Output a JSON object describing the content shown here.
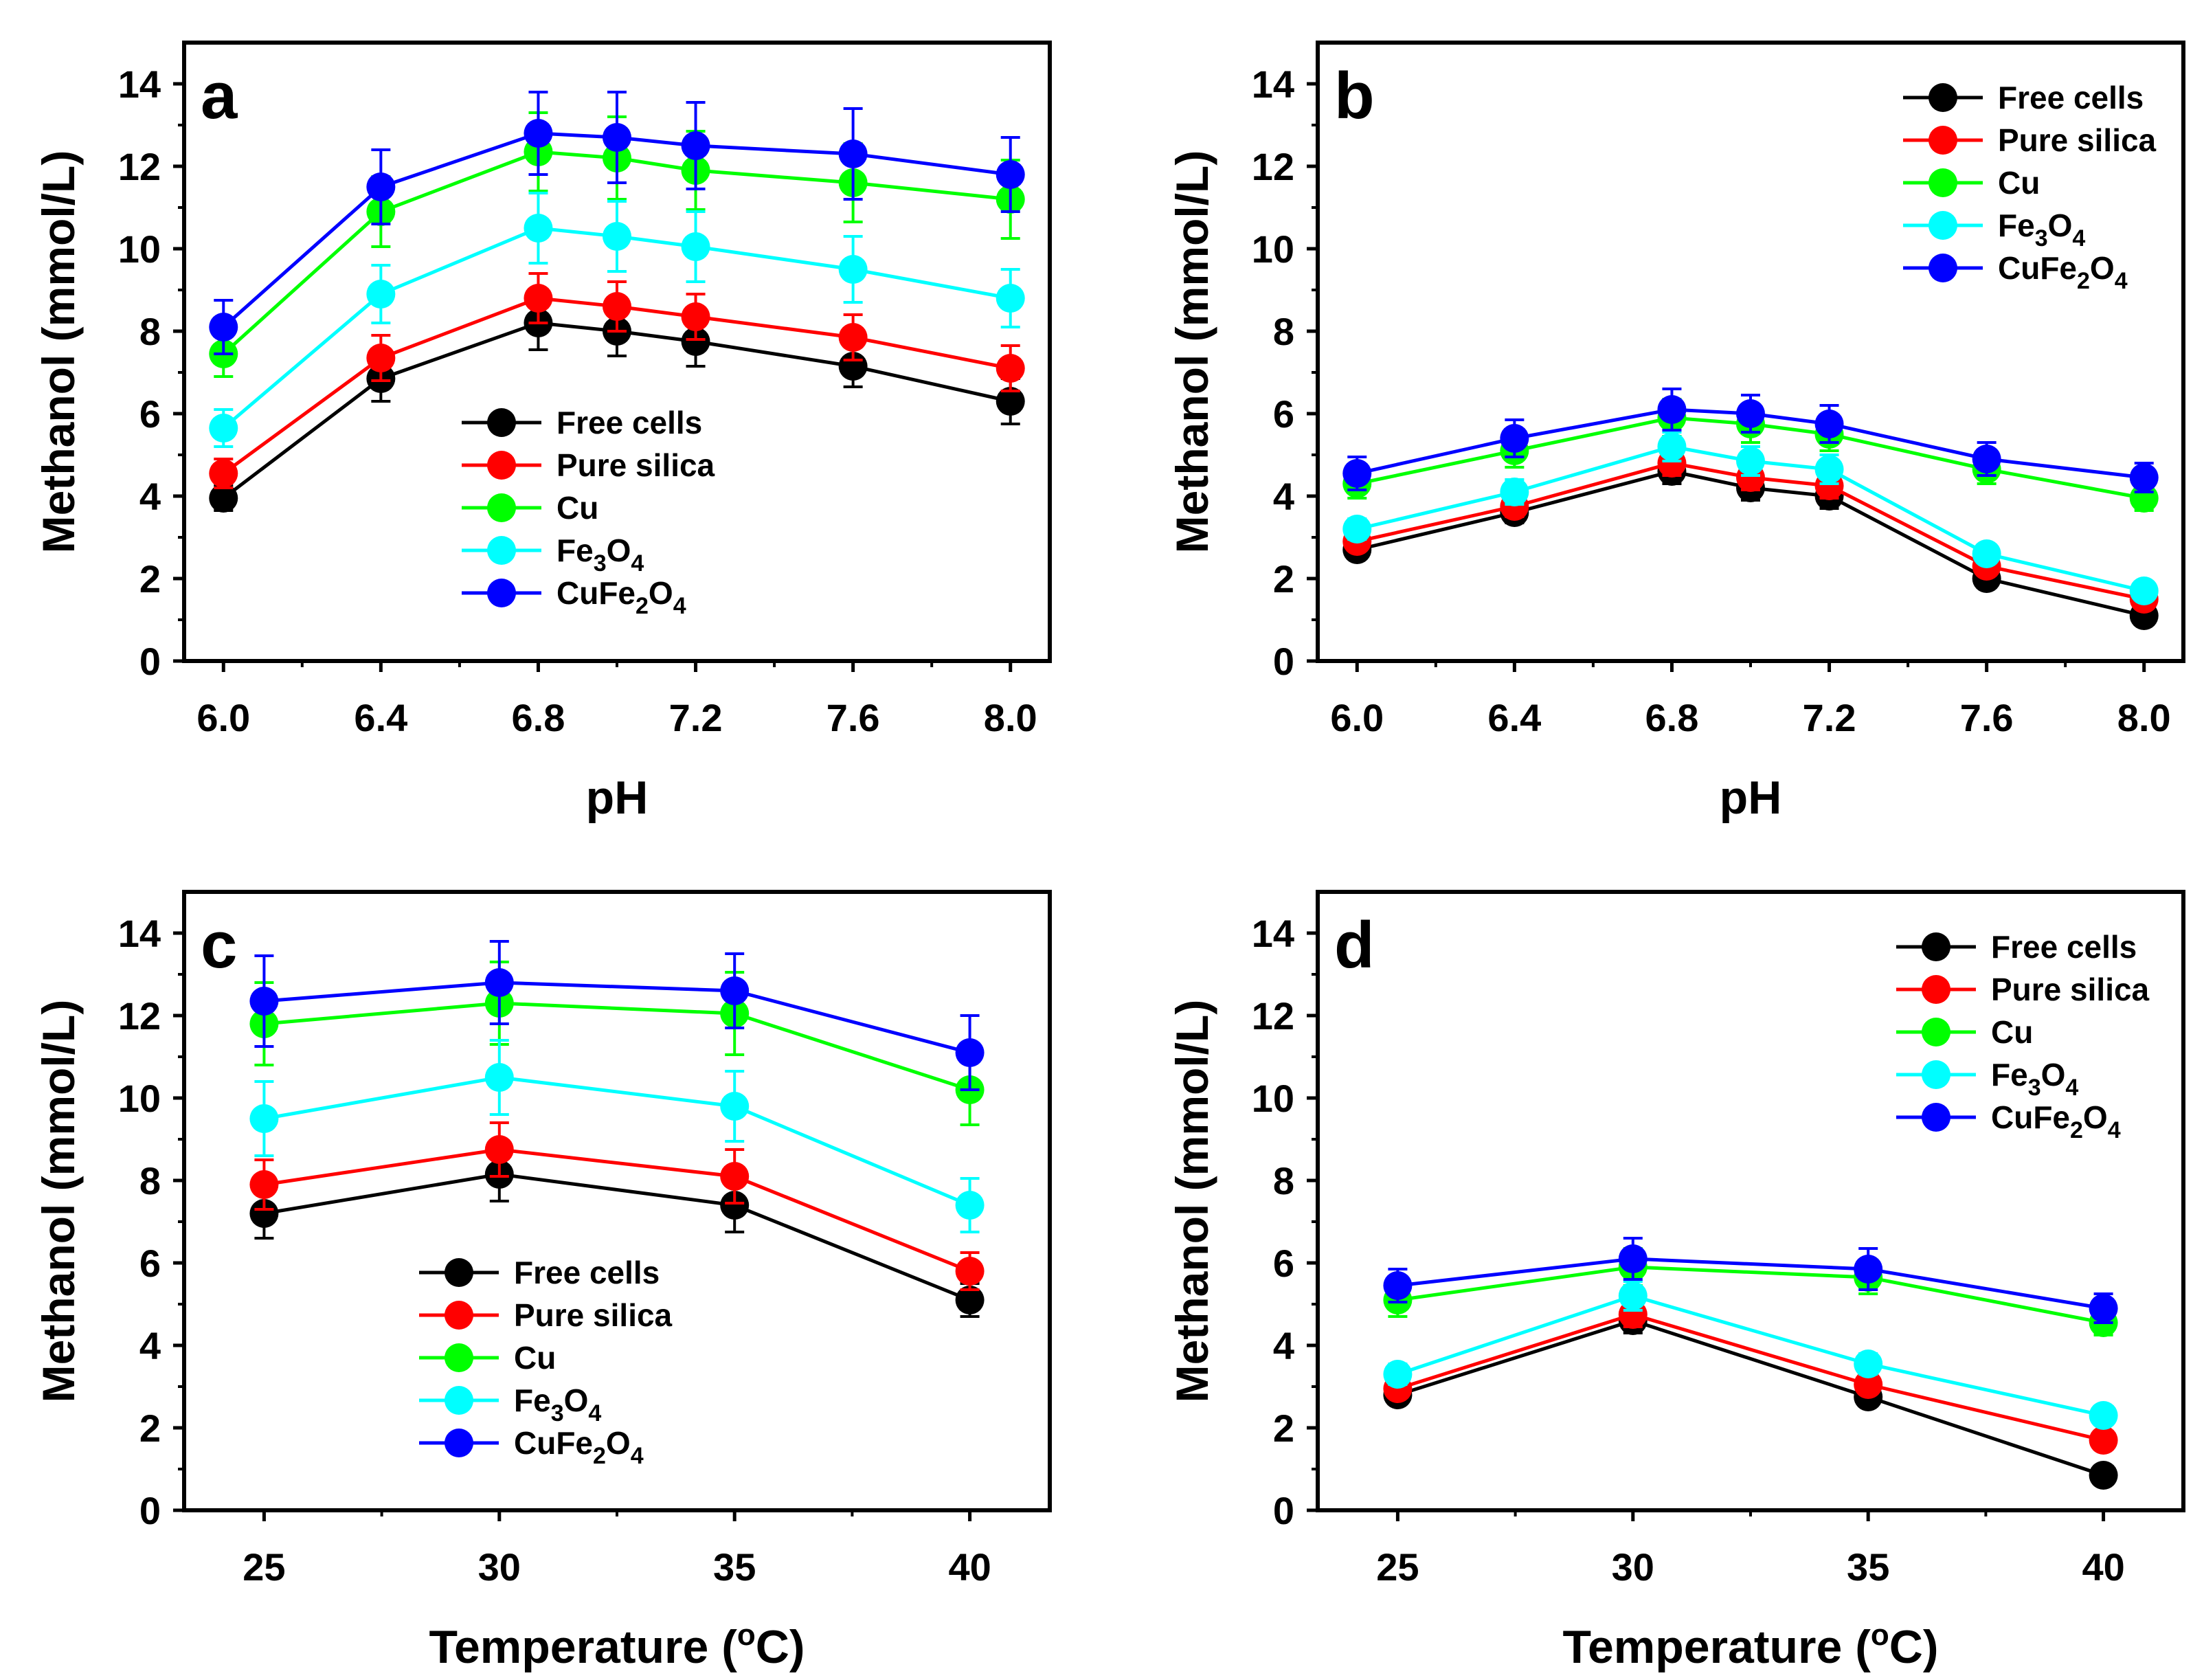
{
  "figure": {
    "description_none": ""
  },
  "chart_data": [
    {
      "panel_label": "a",
      "type": "line",
      "xlabel": "pH",
      "ylabel": "Methanol (mmol/L)",
      "xlim": [
        5.9,
        8.1
      ],
      "ylim": [
        0,
        15
      ],
      "x": [
        6.0,
        6.4,
        6.8,
        7.0,
        7.2,
        7.6,
        8.0
      ],
      "xticks": [
        "6.0",
        "6.4",
        "6.8",
        "7.2",
        "7.6",
        "8.0"
      ],
      "yticks": [
        "0",
        "2",
        "4",
        "6",
        "8",
        "10",
        "12",
        "14"
      ],
      "legend_position": "lower-center",
      "series": [
        {
          "name": "Free cells",
          "name_base": "Free cells",
          "sub_parts": [],
          "color": "#000000",
          "values": [
            3.95,
            6.85,
            8.2,
            8.0,
            7.75,
            7.15,
            6.3
          ],
          "errors": [
            0.3,
            0.55,
            0.65,
            0.6,
            0.6,
            0.5,
            0.55
          ]
        },
        {
          "name": "Pure silica",
          "name_base": "Pure silica",
          "sub_parts": [],
          "color": "#ff0000",
          "values": [
            4.55,
            7.35,
            8.8,
            8.6,
            8.35,
            7.85,
            7.1
          ],
          "errors": [
            0.35,
            0.55,
            0.6,
            0.6,
            0.55,
            0.55,
            0.55
          ]
        },
        {
          "name": "Cu",
          "name_base": "Cu",
          "sub_parts": [],
          "color": "#00ff00",
          "values": [
            7.45,
            10.9,
            12.35,
            12.2,
            11.9,
            11.6,
            11.2
          ],
          "errors": [
            0.55,
            0.85,
            0.95,
            1.0,
            0.95,
            0.95,
            0.95
          ]
        },
        {
          "name": "Fe3O4",
          "name_base": "Fe",
          "sub_parts": [
            "3",
            "O",
            "4"
          ],
          "color": "#00ffff",
          "values": [
            5.65,
            8.9,
            10.5,
            10.3,
            10.05,
            9.5,
            8.8
          ],
          "errors": [
            0.45,
            0.7,
            0.85,
            0.85,
            0.85,
            0.8,
            0.7
          ]
        },
        {
          "name": "CuFe2O4",
          "name_base": "CuFe",
          "sub_parts": [
            "2",
            "O",
            "4"
          ],
          "color": "#0000ff",
          "values": [
            8.1,
            11.5,
            12.8,
            12.7,
            12.5,
            12.3,
            11.8
          ],
          "errors": [
            0.65,
            0.9,
            1.0,
            1.1,
            1.05,
            1.1,
            0.9
          ]
        }
      ]
    },
    {
      "panel_label": "b",
      "type": "line",
      "xlabel": "pH",
      "ylabel": "Methanol (mmol/L)",
      "xlim": [
        5.9,
        8.1
      ],
      "ylim": [
        0,
        15
      ],
      "x": [
        6.0,
        6.4,
        6.8,
        7.0,
        7.2,
        7.6,
        8.0
      ],
      "xticks": [
        "6.0",
        "6.4",
        "6.8",
        "7.2",
        "7.6",
        "8.0"
      ],
      "yticks": [
        "0",
        "2",
        "4",
        "6",
        "8",
        "10",
        "12",
        "14"
      ],
      "legend_position": "top-right",
      "series": [
        {
          "name": "Free cells",
          "name_base": "Free cells",
          "sub_parts": [],
          "color": "#000000",
          "values": [
            2.7,
            3.6,
            4.6,
            4.2,
            4.0,
            2.0,
            1.1
          ],
          "errors": [
            0.2,
            0.25,
            0.3,
            0.3,
            0.3,
            0.2,
            0.15
          ]
        },
        {
          "name": "Pure silica",
          "name_base": "Pure silica",
          "sub_parts": [],
          "color": "#ff0000",
          "values": [
            2.9,
            3.75,
            4.8,
            4.45,
            4.25,
            2.3,
            1.5
          ],
          "errors": [
            0.2,
            0.25,
            0.3,
            0.3,
            0.3,
            0.2,
            0.15
          ]
        },
        {
          "name": "Cu",
          "name_base": "Cu",
          "sub_parts": [],
          "color": "#00ff00",
          "values": [
            4.3,
            5.1,
            5.9,
            5.75,
            5.5,
            4.65,
            3.95
          ],
          "errors": [
            0.35,
            0.4,
            0.45,
            0.45,
            0.4,
            0.35,
            0.3
          ]
        },
        {
          "name": "Fe3O4",
          "name_base": "Fe",
          "sub_parts": [
            "3",
            "O",
            "4"
          ],
          "color": "#00ffff",
          "values": [
            3.2,
            4.1,
            5.2,
            4.85,
            4.65,
            2.6,
            1.7
          ],
          "errors": [
            0.25,
            0.3,
            0.35,
            0.35,
            0.35,
            0.2,
            0.15
          ]
        },
        {
          "name": "CuFe2O4",
          "name_base": "CuFe",
          "sub_parts": [
            "2",
            "O",
            "4"
          ],
          "color": "#0000ff",
          "values": [
            4.55,
            5.4,
            6.1,
            6.0,
            5.75,
            4.9,
            4.45
          ],
          "errors": [
            0.4,
            0.45,
            0.5,
            0.45,
            0.45,
            0.4,
            0.35
          ]
        }
      ]
    },
    {
      "panel_label": "c",
      "type": "line",
      "xlabel": "Temperature (ºC)",
      "xlabel_base": "Temperature (",
      "xlabel_sup": "o",
      "xlabel_end": "C)",
      "ylabel": "Methanol (mmol/L)",
      "xlim": [
        23.3,
        41.7
      ],
      "ylim": [
        0,
        15
      ],
      "x": [
        25,
        30,
        35,
        40
      ],
      "xticks": [
        "25",
        "30",
        "35",
        "40"
      ],
      "yticks": [
        "0",
        "2",
        "4",
        "6",
        "8",
        "10",
        "12",
        "14"
      ],
      "legend_position": "lower-center",
      "series": [
        {
          "name": "Free cells",
          "name_base": "Free cells",
          "sub_parts": [],
          "color": "#000000",
          "values": [
            7.2,
            8.15,
            7.4,
            5.1
          ],
          "errors": [
            0.6,
            0.65,
            0.65,
            0.4
          ]
        },
        {
          "name": "Pure silica",
          "name_base": "Pure silica",
          "sub_parts": [],
          "color": "#ff0000",
          "values": [
            7.9,
            8.75,
            8.1,
            5.8
          ],
          "errors": [
            0.6,
            0.65,
            0.65,
            0.45
          ]
        },
        {
          "name": "Cu",
          "name_base": "Cu",
          "sub_parts": [],
          "color": "#00ff00",
          "values": [
            11.8,
            12.3,
            12.05,
            10.2
          ],
          "errors": [
            1.0,
            1.0,
            1.0,
            0.85
          ]
        },
        {
          "name": "Fe3O4",
          "name_base": "Fe",
          "sub_parts": [
            "3",
            "O",
            "4"
          ],
          "color": "#00ffff",
          "values": [
            9.5,
            10.5,
            9.8,
            7.4
          ],
          "errors": [
            0.9,
            0.9,
            0.85,
            0.65
          ]
        },
        {
          "name": "CuFe2O4",
          "name_base": "CuFe",
          "sub_parts": [
            "2",
            "O",
            "4"
          ],
          "color": "#0000ff",
          "values": [
            12.35,
            12.8,
            12.6,
            11.1
          ],
          "errors": [
            1.1,
            1.0,
            0.9,
            0.9
          ]
        }
      ]
    },
    {
      "panel_label": "d",
      "type": "line",
      "xlabel": "Temperature (ºC)",
      "xlabel_base": "Temperature (",
      "xlabel_sup": "o",
      "xlabel_end": "C)",
      "ylabel": "Methanol (mmol/L)",
      "xlim": [
        23.3,
        41.7
      ],
      "ylim": [
        0,
        15
      ],
      "x": [
        25,
        30,
        35,
        40
      ],
      "xticks": [
        "25",
        "30",
        "35",
        "40"
      ],
      "yticks": [
        "0",
        "2",
        "4",
        "6",
        "8",
        "10",
        "12",
        "14"
      ],
      "legend_position": "top-right",
      "series": [
        {
          "name": "Free cells",
          "name_base": "Free cells",
          "sub_parts": [],
          "color": "#000000",
          "values": [
            2.8,
            4.6,
            2.75,
            0.85
          ],
          "errors": [
            0.2,
            0.3,
            0.2,
            0.1
          ]
        },
        {
          "name": "Pure silica",
          "name_base": "Pure silica",
          "sub_parts": [],
          "color": "#ff0000",
          "values": [
            2.95,
            4.75,
            3.05,
            1.7
          ],
          "errors": [
            0.2,
            0.3,
            0.2,
            0.15
          ]
        },
        {
          "name": "Cu",
          "name_base": "Cu",
          "sub_parts": [],
          "color": "#00ff00",
          "values": [
            5.1,
            5.9,
            5.65,
            4.55
          ],
          "errors": [
            0.4,
            0.45,
            0.4,
            0.3
          ]
        },
        {
          "name": "Fe3O4",
          "name_base": "Fe",
          "sub_parts": [
            "3",
            "O",
            "4"
          ],
          "color": "#00ffff",
          "values": [
            3.3,
            5.2,
            3.55,
            2.3
          ],
          "errors": [
            0.25,
            0.35,
            0.25,
            0.2
          ]
        },
        {
          "name": "CuFe2O4",
          "name_base": "CuFe",
          "sub_parts": [
            "2",
            "O",
            "4"
          ],
          "color": "#0000ff",
          "values": [
            5.45,
            6.1,
            5.85,
            4.9
          ],
          "errors": [
            0.4,
            0.5,
            0.5,
            0.35
          ]
        }
      ]
    }
  ]
}
